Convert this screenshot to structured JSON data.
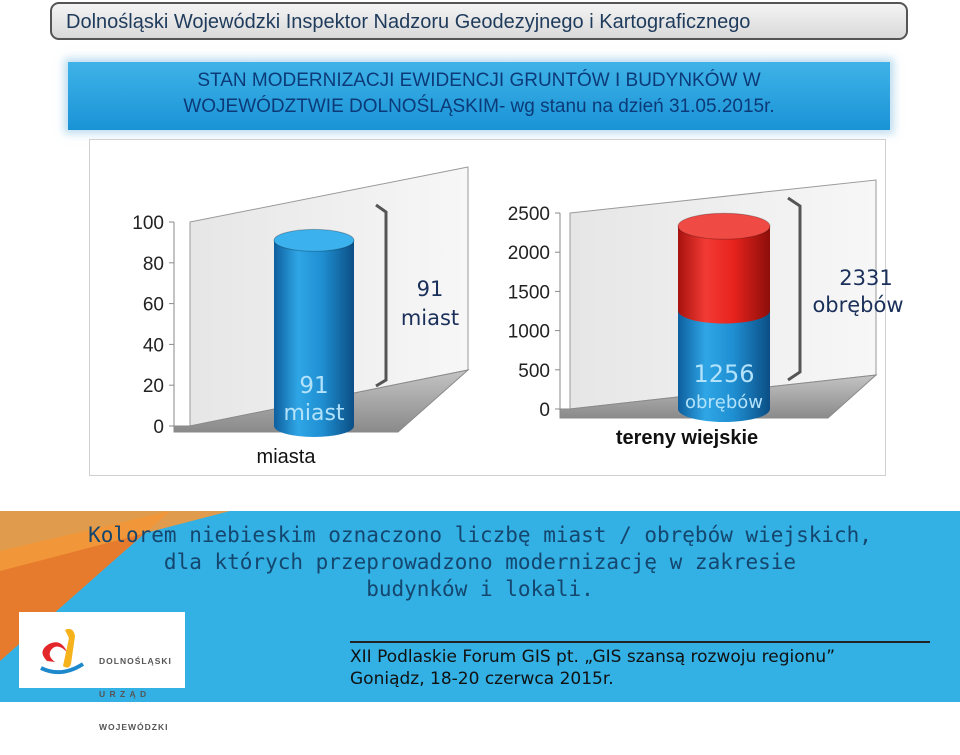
{
  "header": {
    "title": "Dolnośląski Wojewódzki Inspektor Nadzoru Geodezyjnego i Kartograficznego"
  },
  "banner": {
    "line1": "STAN MODERNIZACJI EWIDENCJI GRUNTÓW I BUDYNKÓW W",
    "line2": "WOJEWÓDZTWIE DOLNOŚLĄSKIM- wg stanu na dzień 31.05.2015r."
  },
  "chart_data": [
    {
      "type": "bar",
      "shape": "3d-cylinder",
      "categories": [
        "miasta"
      ],
      "ylim": [
        0,
        100
      ],
      "yticks": [
        "0",
        "20",
        "40",
        "60",
        "80",
        "100"
      ],
      "series": [
        {
          "values": [
            91
          ],
          "color": "#1f8fd2",
          "label_line1": "91",
          "label_line2": "miast"
        }
      ],
      "annotation": {
        "line1": "91",
        "line2": "miast"
      }
    },
    {
      "type": "bar",
      "shape": "3d-cylinder-stacked",
      "categories": [
        "tereny wiejskie"
      ],
      "ylim": [
        0,
        2500
      ],
      "yticks": [
        "0",
        "500",
        "1000",
        "1500",
        "2000",
        "2500"
      ],
      "series": [
        {
          "values": [
            1256
          ],
          "color": "#1f8fd2",
          "label_line1": "1256",
          "label_line2": "obrębów"
        },
        {
          "values": [
            1075
          ],
          "color": "#e8231e"
        }
      ],
      "annotation": {
        "line1": "2331",
        "line2": "obrębów"
      }
    }
  ],
  "note": {
    "line1": "Kolorem niebieskim oznaczono liczbę miast / obrębów wiejskich,",
    "line2": "dla których przeprowadzono modernizację w zakresie",
    "line3": "budynków i lokali."
  },
  "logo": {
    "line1": "DOLNOŚLĄSKI",
    "line2": "U R Z Ą D",
    "line3": "WOJEWÓDZKI"
  },
  "footer": {
    "line1": "XII Podlaskie Forum GIS pt. „GIS szansą rozwoju regionu”",
    "line2": "Goniądz, 18-20 czerwca 2015r."
  }
}
